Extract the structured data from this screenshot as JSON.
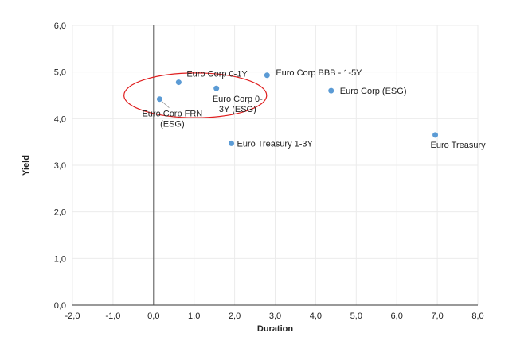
{
  "chart_data": {
    "type": "scatter",
    "title": "",
    "xlabel": "Duration",
    "ylabel": "Yield",
    "xlim": [
      -2,
      8
    ],
    "ylim": [
      0,
      6
    ],
    "x_ticks": [
      -2,
      -1,
      0,
      1,
      2,
      3,
      4,
      5,
      6,
      7,
      8
    ],
    "y_ticks": [
      0,
      1,
      2,
      3,
      4,
      5,
      6
    ],
    "x_tick_labels": [
      "-2,0",
      "-1,0",
      "0,0",
      "1,0",
      "2,0",
      "3,0",
      "4,0",
      "5,0",
      "6,0",
      "7,0",
      "8,0"
    ],
    "y_tick_labels": [
      "0,0",
      "1,0",
      "2,0",
      "3,0",
      "4,0",
      "5,0",
      "6,0"
    ],
    "grid": true,
    "marker_color": "#5b9bd5",
    "highlight_color": "#e02020",
    "points": [
      {
        "name": "Euro Corp FRN (ESG)",
        "lines": [
          "Euro Corp FRN",
          "(ESG)"
        ],
        "x": 0.15,
        "y": 4.42
      },
      {
        "name": "Euro Corp 0-1Y",
        "lines": [
          "Euro Corp 0-1Y"
        ],
        "x": 0.62,
        "y": 4.78
      },
      {
        "name": "Euro Corp 0-3Y (ESG)",
        "lines": [
          "Euro Corp 0-",
          "3Y (ESG)"
        ],
        "x": 1.55,
        "y": 4.65
      },
      {
        "name": "Euro Corp BBB - 1-5Y",
        "lines": [
          "Euro Corp BBB - 1-5Y"
        ],
        "x": 2.8,
        "y": 4.93
      },
      {
        "name": "Euro Corp (ESG)",
        "lines": [
          "Euro Corp (ESG)"
        ],
        "x": 4.38,
        "y": 4.6
      },
      {
        "name": "Euro Treasury 1-3Y",
        "lines": [
          "Euro Treasury 1-3Y"
        ],
        "x": 1.92,
        "y": 3.47
      },
      {
        "name": "Euro Treasury",
        "lines": [
          "Euro Treasury"
        ],
        "x": 6.95,
        "y": 3.65
      }
    ],
    "highlight": {
      "shape": "ellipse",
      "center_x": 1.03,
      "center_y": 4.5,
      "radius_x": 1.76,
      "radius_y": 0.48
    }
  }
}
